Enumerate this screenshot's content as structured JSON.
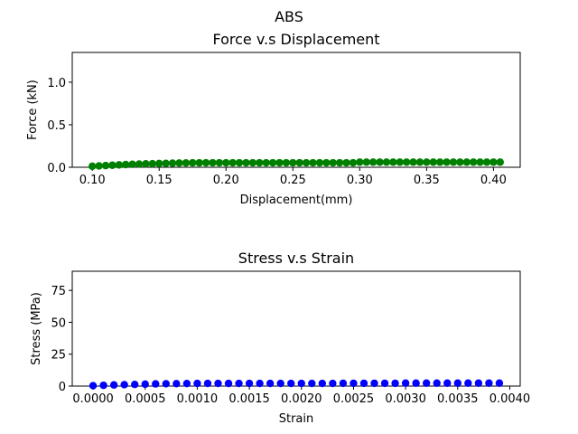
{
  "suptitle": "ABS",
  "chart_data": [
    {
      "type": "scatter",
      "title": "Force v.s Displacement",
      "xlabel": "Displacement(mm)",
      "ylabel": "Force (kN)",
      "xlim": [
        0.085,
        0.42
      ],
      "ylim": [
        0,
        1.35
      ],
      "grid": false,
      "xticks": [
        0.1,
        0.15,
        0.2,
        0.25,
        0.3,
        0.35,
        0.4
      ],
      "xtick_labels": [
        "0.10",
        "0.15",
        "0.20",
        "0.25",
        "0.30",
        "0.35",
        "0.40"
      ],
      "yticks": [
        0.0,
        0.5,
        1.0
      ],
      "ytick_labels": [
        "0.0",
        "0.5",
        "1.0"
      ],
      "color": "#008000",
      "series": [
        {
          "x": [
            0.1,
            0.105,
            0.11,
            0.115,
            0.12,
            0.125,
            0.13,
            0.135,
            0.14,
            0.145,
            0.15,
            0.155,
            0.16,
            0.165,
            0.17,
            0.175,
            0.18,
            0.185,
            0.19,
            0.195,
            0.2,
            0.205,
            0.21,
            0.215,
            0.22,
            0.225,
            0.23,
            0.235,
            0.24,
            0.245,
            0.25,
            0.255,
            0.26,
            0.265,
            0.27,
            0.275,
            0.28,
            0.285,
            0.29,
            0.295,
            0.3,
            0.305,
            0.31,
            0.315,
            0.32,
            0.325,
            0.33,
            0.335,
            0.34,
            0.345,
            0.35,
            0.355,
            0.36,
            0.365,
            0.37,
            0.375,
            0.38,
            0.385,
            0.39,
            0.395,
            0.4,
            0.405
          ],
          "y": [
            0.012,
            0.016,
            0.02,
            0.024,
            0.028,
            0.032,
            0.035,
            0.038,
            0.04,
            0.042,
            0.044,
            0.046,
            0.048,
            0.05,
            0.051,
            0.052,
            0.052,
            0.053,
            0.053,
            0.053,
            0.053,
            0.053,
            0.053,
            0.053,
            0.053,
            0.053,
            0.053,
            0.053,
            0.053,
            0.053,
            0.053,
            0.053,
            0.053,
            0.053,
            0.053,
            0.053,
            0.053,
            0.053,
            0.053,
            0.053,
            0.06,
            0.06,
            0.06,
            0.06,
            0.06,
            0.06,
            0.06,
            0.06,
            0.06,
            0.06,
            0.06,
            0.06,
            0.06,
            0.06,
            0.06,
            0.06,
            0.06,
            0.06,
            0.06,
            0.06,
            0.06,
            0.06
          ]
        }
      ]
    },
    {
      "type": "scatter",
      "title": "Stress v.s Strain",
      "xlabel": "Strain",
      "ylabel": "Stress (MPa)",
      "xlim": [
        -0.0002,
        0.0041
      ],
      "ylim": [
        0,
        90
      ],
      "grid": false,
      "xticks": [
        0.0,
        0.0005,
        0.001,
        0.0015,
        0.002,
        0.0025,
        0.003,
        0.0035,
        0.004
      ],
      "xtick_labels": [
        "0.0000",
        "0.0005",
        "0.0010",
        "0.0015",
        "0.0020",
        "0.0025",
        "0.0030",
        "0.0035",
        "0.0040"
      ],
      "yticks": [
        0,
        25,
        50,
        75
      ],
      "ytick_labels": [
        "0",
        "25",
        "50",
        "75"
      ],
      "color": "#0000ff",
      "series": [
        {
          "x": [
            0.0,
            0.0001,
            0.0002,
            0.0003,
            0.0004,
            0.0005,
            0.0006,
            0.0007,
            0.0008,
            0.0009,
            0.001,
            0.0011,
            0.0012,
            0.0013,
            0.0014,
            0.0015,
            0.0016,
            0.0017,
            0.0018,
            0.0019,
            0.002,
            0.0021,
            0.0022,
            0.0023,
            0.0024,
            0.0025,
            0.0026,
            0.0027,
            0.0028,
            0.0029,
            0.003,
            0.0031,
            0.0032,
            0.0033,
            0.0034,
            0.0035,
            0.0036,
            0.0037,
            0.0038,
            0.0039
          ],
          "y": [
            0.3,
            0.6,
            0.9,
            1.1,
            1.3,
            1.5,
            1.7,
            1.8,
            1.9,
            2.0,
            2.1,
            2.1,
            2.1,
            2.1,
            2.1,
            2.1,
            2.1,
            2.1,
            2.1,
            2.1,
            2.1,
            2.1,
            2.1,
            2.1,
            2.2,
            2.2,
            2.2,
            2.2,
            2.2,
            2.2,
            2.3,
            2.3,
            2.3,
            2.3,
            2.3,
            2.3,
            2.3,
            2.3,
            2.3,
            2.3
          ]
        }
      ]
    }
  ]
}
